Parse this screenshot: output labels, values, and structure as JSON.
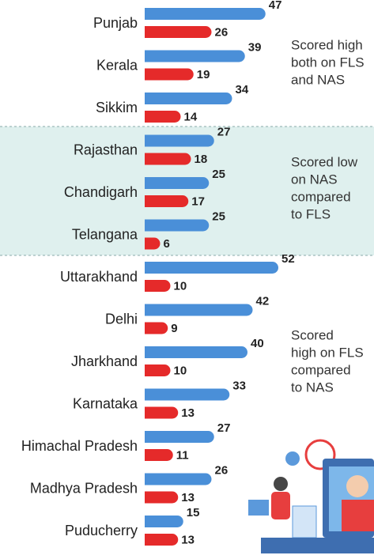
{
  "chart_data": {
    "type": "bar",
    "orientation": "horizontal",
    "categories": [
      "Punjab",
      "Kerala",
      "Sikkim",
      "Rajasthan",
      "Chandigarh",
      "Telangana",
      "Uttarakhand",
      "Delhi",
      "Jharkhand",
      "Karnataka",
      "Himachal Pradesh",
      "Madhya Pradesh",
      "Puducherry"
    ],
    "series": [
      {
        "color": "#4a8fd8",
        "values": [
          47,
          39,
          34,
          27,
          25,
          25,
          52,
          42,
          40,
          33,
          27,
          26,
          15
        ]
      },
      {
        "color": "#e52a2a",
        "values": [
          26,
          19,
          14,
          18,
          17,
          6,
          10,
          9,
          10,
          13,
          11,
          13,
          13
        ]
      }
    ],
    "annotations": [
      {
        "lines": [
          "Scored high",
          "both on FLS",
          "and NAS"
        ]
      },
      {
        "lines": [
          "Scored low",
          "on NAS",
          "compared",
          "to FLS"
        ]
      },
      {
        "lines": [
          "Scored",
          "high on FLS",
          "compared",
          "to NAS"
        ]
      }
    ]
  }
}
